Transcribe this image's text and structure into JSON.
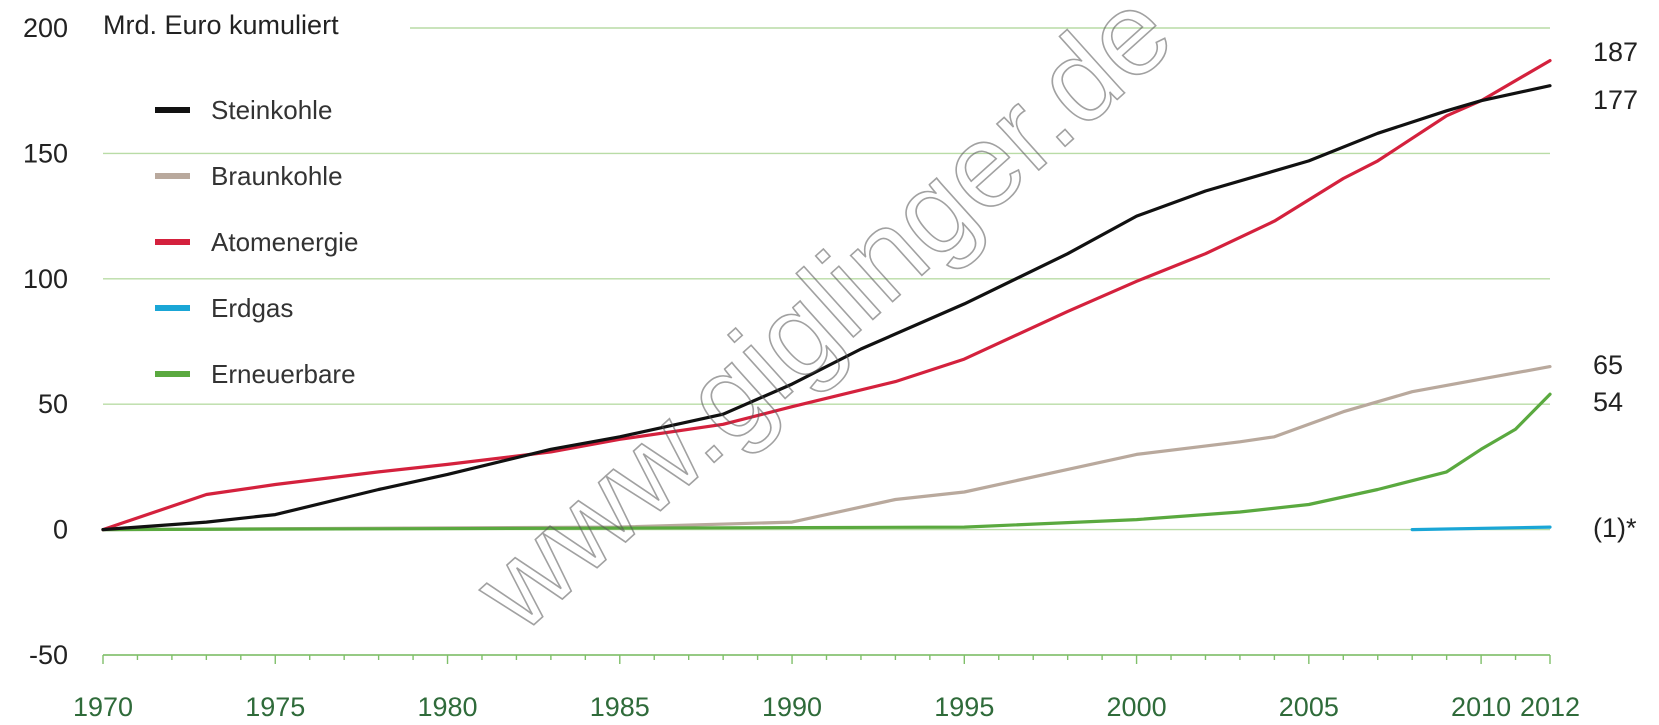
{
  "chart_data": {
    "type": "line",
    "ylabel": "Mrd. Euro kumuliert",
    "ylim": [
      -50,
      200
    ],
    "yticks": [
      "-50",
      "0",
      "50",
      "100",
      "150",
      "200"
    ],
    "xlim": [
      1970,
      2012
    ],
    "xticks": [
      "1970",
      "1975",
      "1980",
      "1985",
      "1990",
      "1995",
      "2000",
      "2005",
      "2010",
      "2012"
    ],
    "grid": true,
    "legend_position": "top-left",
    "series": [
      {
        "name": "Steinkohle",
        "color": "#111111",
        "x": [
          1970,
          1973,
          1975,
          1978,
          1980,
          1983,
          1985,
          1988,
          1990,
          1992,
          1995,
          1998,
          2000,
          2002,
          2005,
          2007,
          2009,
          2010,
          2012
        ],
        "y": [
          0,
          3,
          6,
          16,
          22,
          32,
          37,
          46,
          58,
          72,
          90,
          110,
          125,
          135,
          147,
          158,
          167,
          171,
          177
        ]
      },
      {
        "name": "Braunkohle",
        "color": "#b9a99d",
        "x": [
          1970,
          1985,
          1990,
          1993,
          1995,
          1998,
          2000,
          2003,
          2004,
          2006,
          2008,
          2010,
          2012
        ],
        "y": [
          0,
          1,
          3,
          12,
          15,
          24,
          30,
          35,
          37,
          47,
          55,
          60,
          65
        ]
      },
      {
        "name": "Atomenergie",
        "color": "#d4213d",
        "x": [
          1970,
          1973,
          1975,
          1978,
          1980,
          1983,
          1985,
          1988,
          1990,
          1993,
          1995,
          1998,
          2000,
          2002,
          2004,
          2006,
          2007,
          2009,
          2010,
          2012
        ],
        "y": [
          0,
          14,
          18,
          23,
          26,
          31,
          36,
          42,
          49,
          59,
          68,
          87,
          99,
          110,
          123,
          140,
          147,
          165,
          171,
          187
        ]
      },
      {
        "name": "Erdgas",
        "color": "#1aa6d6",
        "x": [
          2008,
          2012
        ],
        "y": [
          0,
          1
        ]
      },
      {
        "name": "Erneuerbare",
        "color": "#5aa93f",
        "x": [
          1970,
          1995,
          2000,
          2003,
          2005,
          2007,
          2009,
          2010,
          2011,
          2012
        ],
        "y": [
          0,
          1,
          4,
          7,
          10,
          16,
          23,
          32,
          40,
          54
        ]
      }
    ],
    "end_labels": [
      {
        "text": "187",
        "series": "Atomenergie",
        "value": 187
      },
      {
        "text": "177",
        "series": "Steinkohle",
        "value": 177
      },
      {
        "text": "65",
        "series": "Braunkohle",
        "value": 65
      },
      {
        "text": "54",
        "series": "Erneuerbare",
        "value": 54
      },
      {
        "text": "(1)*",
        "series": "Erdgas",
        "value": 1
      }
    ],
    "watermark": "www.giglinger.de"
  }
}
